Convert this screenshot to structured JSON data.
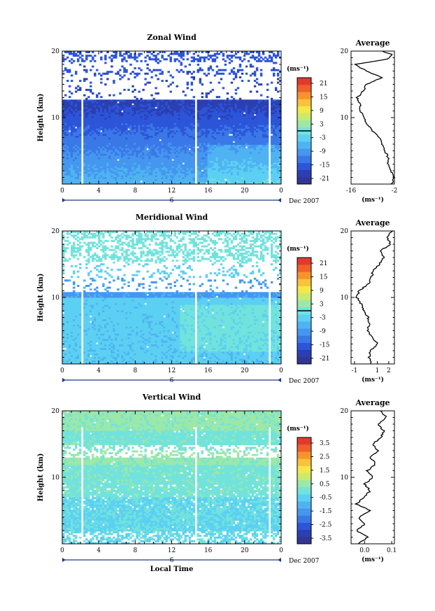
{
  "colormap": [
    "#313695",
    "#2b3fb3",
    "#2c55d8",
    "#3a78e8",
    "#4596ef",
    "#4fb3f2",
    "#5cd0f2",
    "#72e3dc",
    "#9be8a8",
    "#c8ea6e",
    "#f2e84a",
    "#f8c23a",
    "#f7932d",
    "#f0602a",
    "#e23a2a"
  ],
  "line_color": "#000000",
  "date_label": "Dec 2007",
  "day_marker": "6",
  "panels": [
    {
      "title": "Zonal Wind",
      "ylabel": "Height (km)",
      "x_ticks": [
        "0",
        "4",
        "8",
        "12",
        "16",
        "20",
        "0"
      ],
      "y_ticks": [
        "10",
        "20"
      ],
      "colorbar": {
        "unit": "(ms⁻¹)",
        "ticks": [
          "21",
          "15",
          "9",
          "3",
          "-3",
          "-9",
          "-15",
          "-21"
        ],
        "range": [
          -24,
          24
        ],
        "zero_line": 0
      },
      "chart_data": {
        "type": "heatmap",
        "title": "Zonal Wind",
        "ylabel": "Height (km)",
        "xlim": [
          0,
          24
        ],
        "ylim": [
          0,
          20
        ],
        "avg": {
          "title": "Average",
          "xlabel": "(ms⁻¹)",
          "x_ticks": [
            "-16",
            "-2"
          ],
          "xlim": [
            -16,
            -2
          ],
          "y_ticks": [
            "10",
            "20"
          ],
          "profile": [
            [
              -3,
              0
            ],
            [
              -2,
              1
            ],
            [
              -3,
              2
            ],
            [
              -4,
              3
            ],
            [
              -4,
              4
            ],
            [
              -5,
              5
            ],
            [
              -6,
              6
            ],
            [
              -7,
              7
            ],
            [
              -9,
              8
            ],
            [
              -11,
              9
            ],
            [
              -12,
              10
            ],
            [
              -13,
              11
            ],
            [
              -13,
              12
            ],
            [
              -14,
              13
            ],
            [
              -12,
              14
            ],
            [
              -11,
              15
            ],
            [
              -6,
              16
            ],
            [
              -11,
              17
            ],
            [
              -15,
              18
            ],
            [
              -4,
              18.8
            ],
            [
              -3,
              19.5
            ],
            [
              -6,
              20
            ]
          ]
        }
      }
    },
    {
      "title": "Meridional Wind",
      "ylabel": "Height (km)",
      "x_ticks": [
        "0",
        "4",
        "8",
        "12",
        "16",
        "20",
        "0"
      ],
      "y_ticks": [
        "10",
        "20"
      ],
      "colorbar": {
        "unit": "(ms⁻¹)",
        "ticks": [
          "21",
          "15",
          "9",
          "3",
          "-3",
          "-9",
          "-15",
          "-21"
        ],
        "range": [
          -24,
          24
        ],
        "zero_line": 0
      },
      "chart_data": {
        "type": "heatmap",
        "title": "Meridional Wind",
        "ylabel": "Height (km)",
        "xlim": [
          0,
          24
        ],
        "ylim": [
          0,
          20
        ],
        "avg": {
          "title": "Average",
          "xlabel": "(ms⁻¹)",
          "x_ticks": [
            "-1",
            "1",
            "2"
          ],
          "xlim": [
            -1.3,
            2.5
          ],
          "y_ticks": [
            "10",
            "20"
          ],
          "profile": [
            [
              0.5,
              0
            ],
            [
              0.3,
              1
            ],
            [
              0.4,
              2
            ],
            [
              1.0,
              3
            ],
            [
              0.6,
              4
            ],
            [
              0.1,
              5
            ],
            [
              0.3,
              6
            ],
            [
              0.2,
              7
            ],
            [
              -0.2,
              8
            ],
            [
              -0.4,
              9
            ],
            [
              -0.8,
              10
            ],
            [
              -0.6,
              11
            ],
            [
              0.2,
              12
            ],
            [
              0.5,
              13
            ],
            [
              0.6,
              14
            ],
            [
              1.2,
              15
            ],
            [
              1.6,
              16
            ],
            [
              1.2,
              17
            ],
            [
              2.2,
              18
            ],
            [
              1.8,
              19
            ],
            [
              2.3,
              20
            ]
          ]
        }
      }
    },
    {
      "title": "Vertical Wind",
      "ylabel": "Height (km)",
      "xlabel": "Local Time",
      "x_ticks": [
        "0",
        "4",
        "8",
        "12",
        "16",
        "20",
        "0"
      ],
      "y_ticks": [
        "10",
        "20"
      ],
      "colorbar": {
        "unit": "(ms⁻¹)",
        "ticks": [
          "3.5",
          "2.5",
          "1.5",
          "0.5",
          "-0.5",
          "-1.5",
          "-2.5",
          "-3.5"
        ],
        "range": [
          -4,
          4
        ],
        "zero_line": null
      },
      "chart_data": {
        "type": "heatmap",
        "title": "Vertical Wind",
        "ylabel": "Height (km)",
        "xlabel": "Local Time",
        "xlim": [
          0,
          24
        ],
        "ylim": [
          0,
          20
        ],
        "avg": {
          "title": "Average",
          "xlabel": "(ms⁻¹)",
          "x_ticks": [
            "0.0",
            "0.1"
          ],
          "xlim": [
            -0.05,
            0.11
          ],
          "y_ticks": [
            "10",
            "20"
          ],
          "profile": [
            [
              -0.02,
              0
            ],
            [
              0.01,
              1
            ],
            [
              -0.03,
              2
            ],
            [
              0.0,
              3
            ],
            [
              -0.02,
              4
            ],
            [
              0.02,
              5
            ],
            [
              -0.03,
              6
            ],
            [
              0.0,
              7
            ],
            [
              0.02,
              8
            ],
            [
              0.0,
              9
            ],
            [
              0.03,
              10
            ],
            [
              0.01,
              11
            ],
            [
              0.04,
              12
            ],
            [
              0.02,
              13
            ],
            [
              0.05,
              14
            ],
            [
              0.03,
              15
            ],
            [
              0.06,
              16
            ],
            [
              0.07,
              17
            ],
            [
              0.05,
              18
            ],
            [
              0.08,
              19
            ],
            [
              0.06,
              20
            ]
          ]
        }
      }
    }
  ]
}
